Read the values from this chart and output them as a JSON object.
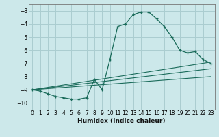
{
  "xlabel": "Humidex (Indice chaleur)",
  "ylabel": "",
  "bg_color": "#cce8ea",
  "grid_color": "#aacdd0",
  "line_color": "#1a6b5a",
  "xlim": [
    -0.5,
    23.5
  ],
  "ylim": [
    -10.5,
    -2.5
  ],
  "yticks": [
    -10,
    -9,
    -8,
    -7,
    -6,
    -5,
    -4,
    -3
  ],
  "xticks": [
    0,
    1,
    2,
    3,
    4,
    5,
    6,
    7,
    8,
    9,
    10,
    11,
    12,
    13,
    14,
    15,
    16,
    17,
    18,
    19,
    20,
    21,
    22,
    23
  ],
  "curve1_x": [
    0,
    1,
    2,
    3,
    4,
    5,
    6,
    7,
    8,
    9,
    10,
    11,
    12,
    13,
    14,
    15,
    16,
    17,
    18,
    19,
    20,
    21,
    22,
    23
  ],
  "curve1_y": [
    -9.0,
    -9.1,
    -9.3,
    -9.5,
    -9.6,
    -9.7,
    -9.7,
    -9.6,
    -8.2,
    -9.0,
    -6.7,
    -4.2,
    -4.0,
    -3.3,
    -3.1,
    -3.1,
    -3.6,
    -4.2,
    -5.0,
    -6.0,
    -6.2,
    -6.1,
    -6.7,
    -7.0
  ],
  "line2_x": [
    0,
    23
  ],
  "line2_y": [
    -9.0,
    -6.9
  ],
  "line3_x": [
    0,
    23
  ],
  "line3_y": [
    -9.0,
    -7.4
  ],
  "line4_x": [
    0,
    23
  ],
  "line4_y": [
    -9.0,
    -8.0
  ]
}
